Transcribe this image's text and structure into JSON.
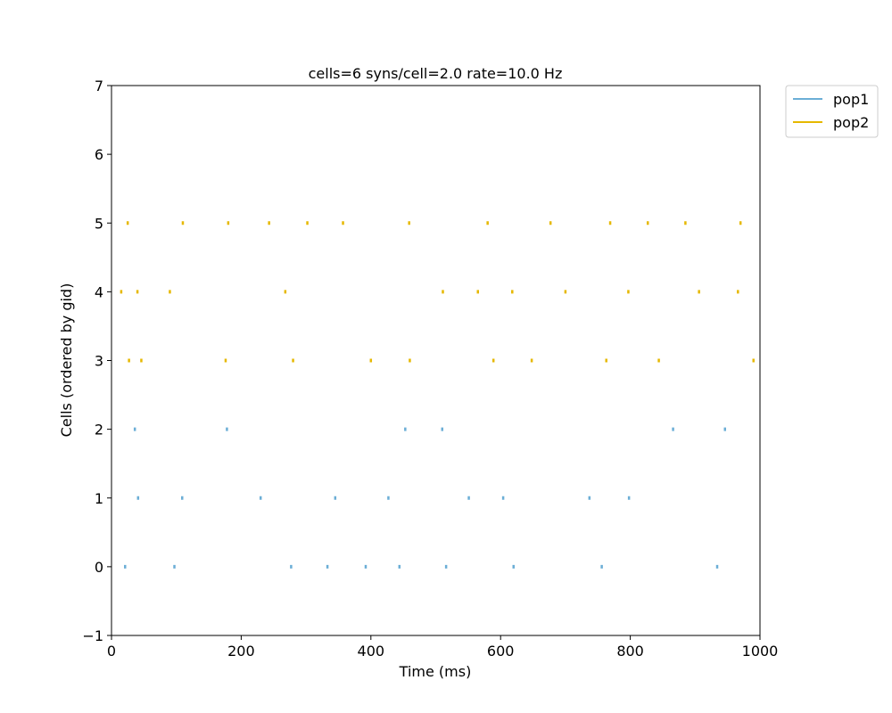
{
  "chart_data": {
    "type": "scatter",
    "title": "cells=6   syns/cell=2.0   rate=10.0 Hz",
    "xlabel": "Time (ms)",
    "ylabel": "Cells (ordered by gid)",
    "xlim": [
      0,
      1000
    ],
    "ylim": [
      -1,
      7
    ],
    "xticks": [
      0,
      200,
      400,
      600,
      800,
      1000
    ],
    "xtick_labels": [
      "0",
      "200",
      "400",
      "600",
      "800",
      "1000"
    ],
    "yticks": [
      -1,
      0,
      1,
      2,
      3,
      4,
      5,
      6,
      7
    ],
    "ytick_labels": [
      "−1",
      "0",
      "1",
      "2",
      "3",
      "4",
      "5",
      "6",
      "7"
    ],
    "grid": false,
    "legend_position": "outside-top-right",
    "series": [
      {
        "name": "pop1",
        "color": "#6baed6",
        "points": [
          [
            21,
            0
          ],
          [
            97,
            0
          ],
          [
            277,
            0
          ],
          [
            333,
            0
          ],
          [
            392,
            0
          ],
          [
            444,
            0
          ],
          [
            516,
            0
          ],
          [
            620,
            0
          ],
          [
            756,
            0
          ],
          [
            934,
            0
          ],
          [
            41,
            1
          ],
          [
            109,
            1
          ],
          [
            230,
            1
          ],
          [
            345,
            1
          ],
          [
            427,
            1
          ],
          [
            551,
            1
          ],
          [
            604,
            1
          ],
          [
            737,
            1
          ],
          [
            798,
            1
          ],
          [
            36,
            2
          ],
          [
            178,
            2
          ],
          [
            453,
            2
          ],
          [
            510,
            2
          ],
          [
            866,
            2
          ],
          [
            946,
            2
          ]
        ]
      },
      {
        "name": "pop2",
        "color": "#e6b800",
        "points": [
          [
            27,
            3
          ],
          [
            46,
            3
          ],
          [
            176,
            3
          ],
          [
            280,
            3
          ],
          [
            400,
            3
          ],
          [
            460,
            3
          ],
          [
            589,
            3
          ],
          [
            648,
            3
          ],
          [
            763,
            3
          ],
          [
            844,
            3
          ],
          [
            990,
            3
          ],
          [
            15,
            4
          ],
          [
            40,
            4
          ],
          [
            90,
            4
          ],
          [
            268,
            4
          ],
          [
            511,
            4
          ],
          [
            565,
            4
          ],
          [
            618,
            4
          ],
          [
            700,
            4
          ],
          [
            797,
            4
          ],
          [
            906,
            4
          ],
          [
            966,
            4
          ],
          [
            25,
            5
          ],
          [
            110,
            5
          ],
          [
            180,
            5
          ],
          [
            243,
            5
          ],
          [
            302,
            5
          ],
          [
            357,
            5
          ],
          [
            459,
            5
          ],
          [
            580,
            5
          ],
          [
            677,
            5
          ],
          [
            769,
            5
          ],
          [
            827,
            5
          ],
          [
            885,
            5
          ],
          [
            970,
            5
          ]
        ]
      }
    ]
  }
}
